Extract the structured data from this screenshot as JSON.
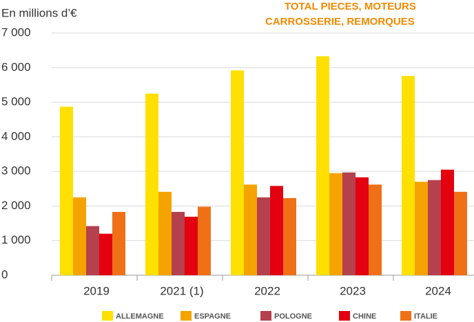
{
  "chart_data": {
    "type": "bar",
    "title": [
      "TOTAL PIECES, MOTEURS",
      "CARROSSERIE, REMORQUES"
    ],
    "y_label": "En millions d’€",
    "categories": [
      "2019",
      "2021 (1)",
      "2022",
      "2023",
      "2024"
    ],
    "series": [
      {
        "name": "ALLEMAGNE",
        "color": "#ffe000",
        "values": [
          4870,
          5250,
          5920,
          6330,
          5760
        ]
      },
      {
        "name": "ESPAGNE",
        "color": "#f5a300",
        "values": [
          2250,
          2410,
          2620,
          2950,
          2700
        ]
      },
      {
        "name": "POLOGNE",
        "color": "#b5404e",
        "values": [
          1420,
          1830,
          2250,
          2970,
          2750
        ]
      },
      {
        "name": "CHINE",
        "color": "#e3000f",
        "values": [
          1200,
          1690,
          2580,
          2830,
          3050
        ]
      },
      {
        "name": "ITALIE",
        "color": "#ef7017",
        "values": [
          1830,
          1980,
          2230,
          2620,
          2410
        ]
      }
    ],
    "ylim": [
      0,
      7000
    ],
    "yticks": [
      0,
      {
        "value": 1000,
        "label": "1 000"
      },
      {
        "value": 2000,
        "label": "2 000"
      },
      {
        "value": 3000,
        "label": "3 000"
      },
      {
        "value": 4000,
        "label": "4 000"
      },
      {
        "value": 5000,
        "label": "5 000"
      },
      {
        "value": 6000,
        "label": "6 000"
      },
      {
        "value": 7000,
        "label": "7 000"
      }
    ],
    "grid": true
  }
}
